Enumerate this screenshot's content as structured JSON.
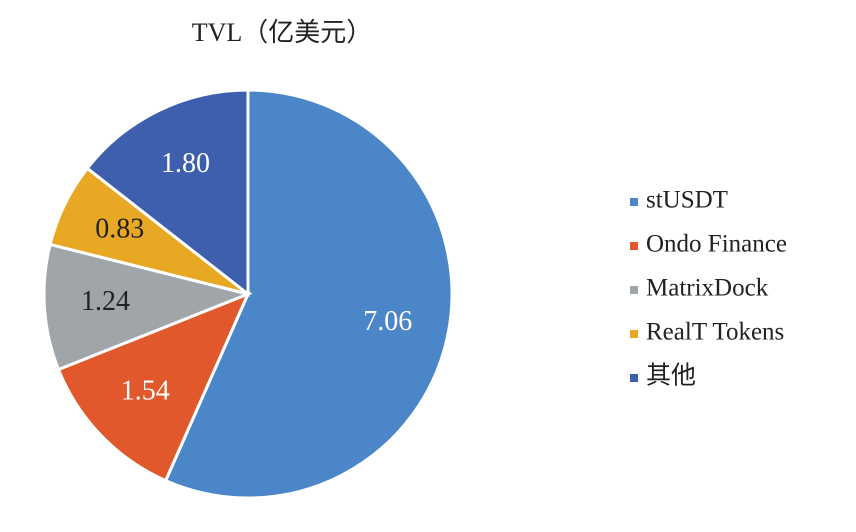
{
  "chart_data": {
    "type": "pie",
    "title": "TVL（亿美元）",
    "categories": [
      "stUSDT",
      "Ondo Finance",
      "MatrixDock",
      "RealT Tokens",
      "其他"
    ],
    "values": [
      7.06,
      1.54,
      1.24,
      0.83,
      1.8
    ],
    "value_labels": [
      "7.06",
      "1.54",
      "1.24",
      "0.83",
      "1.80"
    ],
    "colors": [
      "#4a86c8",
      "#e0582b",
      "#a0a5aa",
      "#e9a823",
      "#3d5fae"
    ],
    "legend": "right"
  }
}
